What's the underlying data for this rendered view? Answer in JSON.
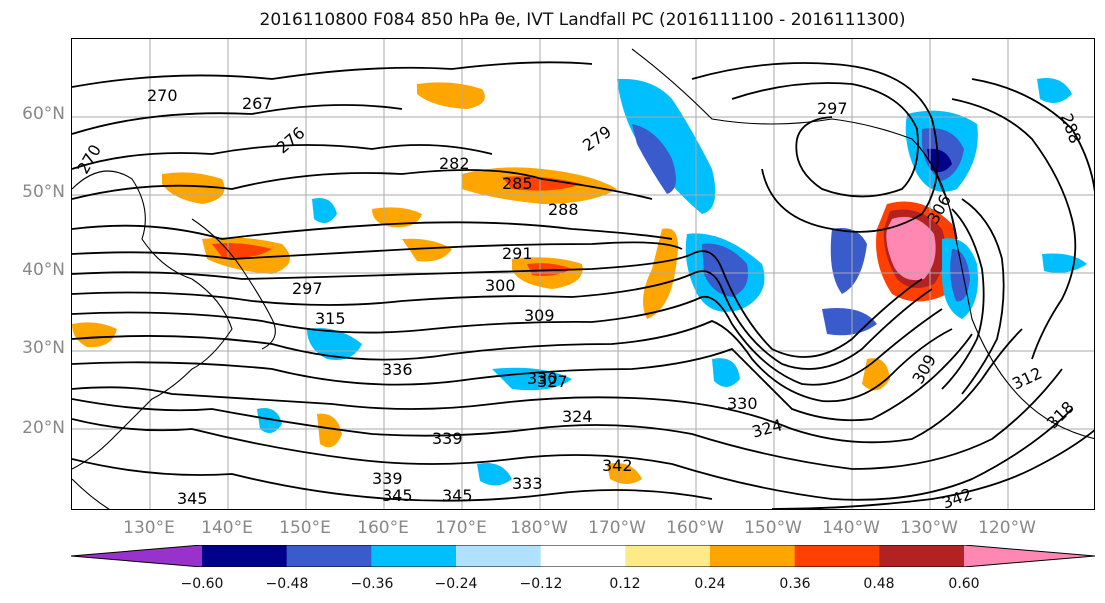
{
  "title": "2016110800 F084 850 hPa θe, IVT Landfall PC (2016111100 - 2016111300)",
  "lat_labels": [
    "60°N",
    "50°N",
    "40°N",
    "30°N",
    "20°N"
  ],
  "lon_labels": [
    "130°E",
    "140°E",
    "150°E",
    "160°E",
    "170°E",
    "180°W",
    "170°W",
    "160°W",
    "150°W",
    "140°W",
    "130°W",
    "120°W"
  ],
  "colorbar": {
    "colors": [
      "#9932cc",
      "#00008b",
      "#3a5bcc",
      "#00bfff",
      "#b0e2ff",
      "#ffffff",
      "#ffea8a",
      "#ffa500",
      "#ff4000",
      "#b22222",
      "#ff88b3"
    ],
    "tick_labels": [
      "−0.60",
      "−0.48",
      "−0.36",
      "−0.24",
      "−0.12",
      "0.12",
      "0.24",
      "0.36",
      "0.48",
      "0.60"
    ]
  },
  "contour_labels": [
    "270",
    "276",
    "270",
    "267",
    "279",
    "282",
    "285",
    "288",
    "291",
    "300",
    "297",
    "309",
    "315",
    "336",
    "330",
    "324",
    "330",
    "342",
    "339",
    "345",
    "339",
    "345",
    "345",
    "342",
    "327",
    "333",
    "324",
    "318",
    "312",
    "309",
    "288",
    "297",
    "306"
  ]
}
